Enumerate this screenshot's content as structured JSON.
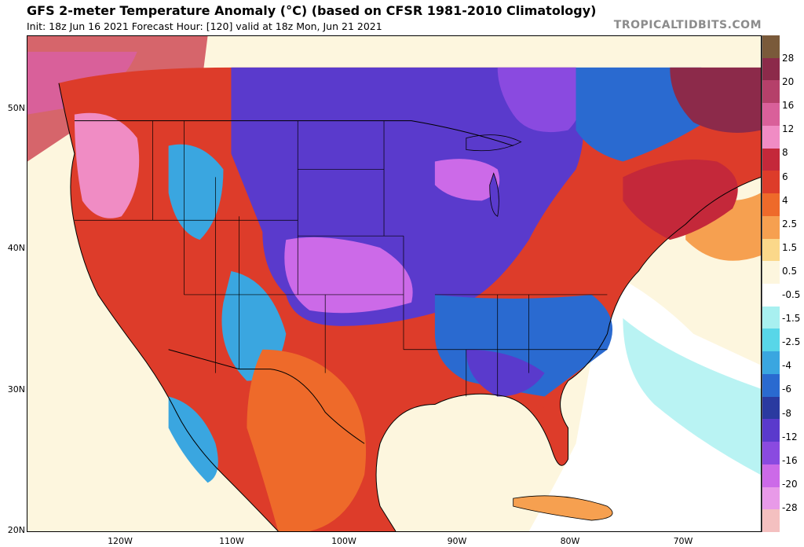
{
  "header": {
    "title": "GFS 2-meter Temperature Anomaly (°C) (based on CFSR 1981-2010 Climatology)",
    "subtitle": "Init: 18z Jun 16 2021   Forecast Hour: [120]   valid at 18z Mon, Jun 21 2021",
    "brand": "TROPICALTIDBITS.COM"
  },
  "map": {
    "lat_labels": [
      "50N",
      "40N",
      "30N",
      "20N"
    ],
    "lon_labels": [
      "120W",
      "110W",
      "100W",
      "90W",
      "80W",
      "70W"
    ]
  },
  "colorbar": {
    "labels": [
      "28",
      "20",
      "16",
      "12",
      "8",
      "6",
      "4",
      "2.5",
      "1.5",
      "0.5",
      "-0.5",
      "-1.5",
      "-2.5",
      "-4",
      "-6",
      "-8",
      "-12",
      "-16",
      "-20",
      "-28"
    ],
    "colors": [
      "#7a5a3a",
      "#8c2a4a",
      "#b5406a",
      "#d9609a",
      "#f08cc4",
      "#c4283a",
      "#dd3c2a",
      "#ee6a2a",
      "#f6a050",
      "#fbd88a",
      "#fdf6de",
      "#ffffff",
      "#a8f0f0",
      "#58d6e8",
      "#3aa6e0",
      "#2a6ad0",
      "#2a3aa0",
      "#5a3acc",
      "#8a4ae0",
      "#cc6ae8",
      "#e89ae8",
      "#f4c0c0"
    ]
  }
}
